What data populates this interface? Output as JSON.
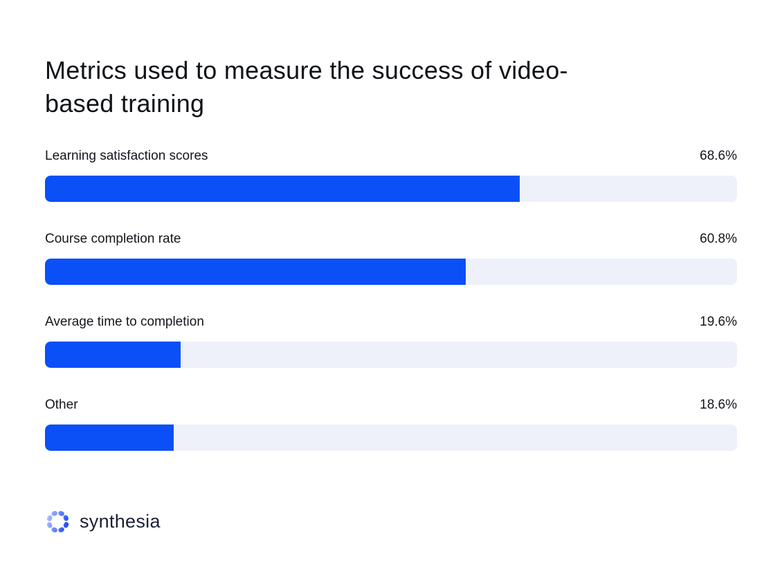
{
  "chart_data": {
    "type": "bar",
    "orientation": "horizontal",
    "title": "Metrics used to measure the success of video-based training",
    "categories": [
      "Learning satisfaction scores",
      "Course completion rate",
      "Average time to completion",
      "Other"
    ],
    "values": [
      68.6,
      60.8,
      19.6,
      18.6
    ],
    "display_values": [
      "68.6%",
      "60.8%",
      "19.6%",
      "18.6%"
    ],
    "xlim": [
      0,
      100
    ],
    "grid": false,
    "legend": "none",
    "value_label_position": "right-aligned-above-bar"
  },
  "colors": {
    "bar": "#0B4FF7",
    "track": "#EEF1F9",
    "title_text": "#0E1116",
    "label_text": "#14161C",
    "background": "#FFFFFF",
    "logo_text": "#1B2133",
    "logo_gradient_start": "#B7C6FF",
    "logo_gradient_end": "#1240F2"
  },
  "footer": {
    "brand_wordmark": "synthesia",
    "brand_icon": "synthesia-mark"
  }
}
